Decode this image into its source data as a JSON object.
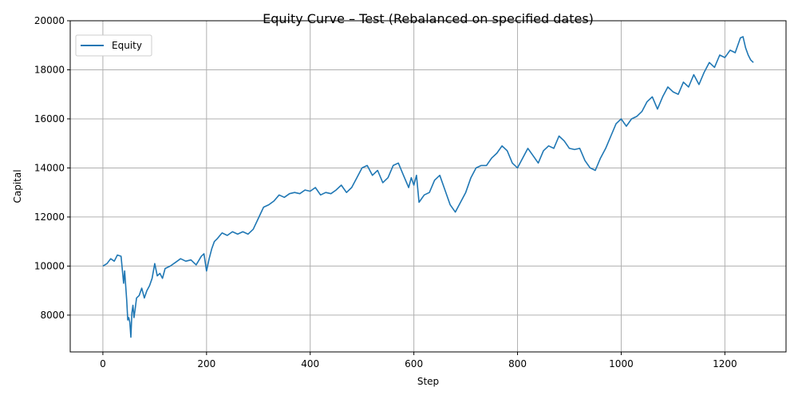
{
  "chart_data": {
    "type": "line",
    "title": "Equity Curve – Test (Rebalanced on specified dates)",
    "xlabel": "Step",
    "ylabel": "Capital",
    "xlim": [
      -63,
      1318
    ],
    "ylim": [
      6500,
      20000
    ],
    "xticks": [
      0,
      200,
      400,
      600,
      800,
      1000,
      1200
    ],
    "yticks": [
      8000,
      10000,
      12000,
      14000,
      16000,
      18000,
      20000
    ],
    "grid": true,
    "legend_position": "top-left",
    "colors": {
      "equity": "#1f77b4",
      "grid": "#b0b0b0"
    },
    "series": [
      {
        "name": "Equity",
        "x": [
          0,
          8,
          15,
          22,
          28,
          35,
          40,
          42,
          44,
          46,
          48,
          50,
          52,
          54,
          56,
          58,
          60,
          62,
          65,
          70,
          75,
          80,
          85,
          90,
          95,
          100,
          105,
          110,
          115,
          120,
          130,
          140,
          150,
          160,
          170,
          180,
          190,
          195,
          200,
          205,
          210,
          215,
          220,
          230,
          240,
          250,
          260,
          270,
          280,
          290,
          300,
          310,
          320,
          330,
          340,
          350,
          360,
          370,
          380,
          390,
          400,
          410,
          420,
          430,
          440,
          450,
          460,
          470,
          480,
          490,
          500,
          510,
          520,
          530,
          540,
          550,
          560,
          570,
          580,
          590,
          595,
          600,
          605,
          610,
          620,
          630,
          640,
          650,
          660,
          670,
          680,
          690,
          700,
          710,
          720,
          730,
          740,
          750,
          760,
          770,
          780,
          790,
          800,
          810,
          820,
          830,
          840,
          850,
          860,
          870,
          880,
          890,
          900,
          910,
          920,
          930,
          940,
          950,
          960,
          970,
          980,
          990,
          1000,
          1010,
          1020,
          1030,
          1040,
          1050,
          1060,
          1070,
          1080,
          1090,
          1100,
          1110,
          1120,
          1130,
          1140,
          1150,
          1160,
          1170,
          1180,
          1190,
          1200,
          1210,
          1220,
          1230,
          1235,
          1240,
          1245,
          1250,
          1255
        ],
        "values": [
          10000,
          10100,
          10300,
          10200,
          10450,
          10400,
          9300,
          9800,
          9200,
          8600,
          7800,
          7900,
          7700,
          7100,
          8100,
          8400,
          7900,
          8200,
          8700,
          8800,
          9100,
          8700,
          9000,
          9200,
          9500,
          10100,
          9600,
          9700,
          9500,
          9900,
          10000,
          10150,
          10300,
          10200,
          10250,
          10050,
          10400,
          10500,
          9800,
          10300,
          10700,
          11000,
          11100,
          11350,
          11250,
          11400,
          11300,
          11400,
          11300,
          11500,
          11950,
          12400,
          12500,
          12650,
          12900,
          12800,
          12950,
          13000,
          12950,
          13100,
          13050,
          13200,
          12900,
          13000,
          12950,
          13100,
          13300,
          13000,
          13200,
          13600,
          14000,
          14100,
          13700,
          13900,
          13400,
          13600,
          14100,
          14200,
          13700,
          13200,
          13600,
          13300,
          13700,
          12600,
          12900,
          13000,
          13500,
          13700,
          13100,
          12500,
          12200,
          12600,
          13000,
          13600,
          14000,
          14100,
          14100,
          14400,
          14600,
          14900,
          14700,
          14200,
          14000,
          14400,
          14800,
          14500,
          14200,
          14700,
          14900,
          14800,
          15300,
          15100,
          14800,
          14750,
          14800,
          14300,
          14000,
          13900,
          14400,
          14800,
          15300,
          15800,
          16000,
          15700,
          16000,
          16100,
          16300,
          16700,
          16900,
          16400,
          16900,
          17300,
          17100,
          17000,
          17500,
          17300,
          17800,
          17400,
          17900,
          18300,
          18100,
          18600,
          18500,
          18800,
          18700,
          19300,
          19350,
          18900,
          18600,
          18400,
          18300
        ]
      }
    ]
  }
}
